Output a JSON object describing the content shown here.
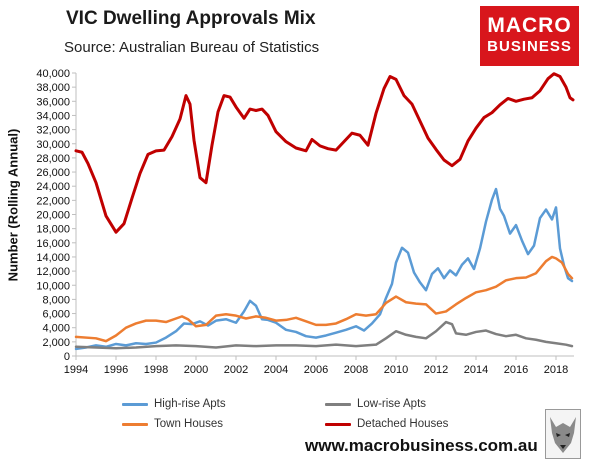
{
  "title": "VIC Dwelling Approvals Mix",
  "subtitle": "Source: Australian Bureau of Statistics",
  "logo": {
    "line1": "MACRO",
    "line2": "BUSINESS"
  },
  "website": "www.macrobusiness.com.au",
  "colors": {
    "high_rise": "#5b9bd5",
    "low_rise": "#7f7f7f",
    "town_houses": "#ed7d31",
    "detached": "#c00000",
    "logo_bg": "#d8161c"
  },
  "chart_data": {
    "type": "line",
    "title": "VIC Dwelling Approvals Mix",
    "ylabel": "Number (Rolling Annual)",
    "xlabel": "",
    "xlim": [
      1994,
      2018.9
    ],
    "ylim": [
      0,
      40000
    ],
    "x_ticks": [
      "1994",
      "1996",
      "1998",
      "2000",
      "2002",
      "2004",
      "2006",
      "2008",
      "2010",
      "2012",
      "2014",
      "2016",
      "2018"
    ],
    "y_ticks": [
      "0",
      "2,000",
      "4,000",
      "6,000",
      "8,000",
      "10,000",
      "12,000",
      "14,000",
      "16,000",
      "18,000",
      "20,000",
      "22,000",
      "24,000",
      "26,000",
      "28,000",
      "30,000",
      "32,000",
      "34,000",
      "36,000",
      "38,000",
      "40,000"
    ],
    "grid": false,
    "legend_position": "bottom",
    "series": [
      {
        "name": "High-rise Apts",
        "color": "#5b9bd5",
        "points": [
          [
            1994.0,
            1000
          ],
          [
            1994.5,
            1200
          ],
          [
            1995.0,
            1500
          ],
          [
            1995.5,
            1300
          ],
          [
            1996.0,
            1700
          ],
          [
            1996.5,
            1500
          ],
          [
            1997.0,
            1800
          ],
          [
            1997.5,
            1700
          ],
          [
            1998.0,
            1900
          ],
          [
            1998.5,
            2600
          ],
          [
            1999.0,
            3500
          ],
          [
            1999.4,
            4600
          ],
          [
            1999.8,
            4500
          ],
          [
            2000.2,
            4900
          ],
          [
            2000.6,
            4300
          ],
          [
            2001.0,
            5000
          ],
          [
            2001.5,
            5200
          ],
          [
            2002.0,
            4700
          ],
          [
            2002.4,
            6300
          ],
          [
            2002.7,
            7800
          ],
          [
            2003.0,
            7100
          ],
          [
            2003.3,
            5200
          ],
          [
            2003.6,
            5100
          ],
          [
            2004.0,
            4700
          ],
          [
            2004.5,
            3700
          ],
          [
            2005.0,
            3400
          ],
          [
            2005.5,
            2800
          ],
          [
            2006.0,
            2600
          ],
          [
            2006.5,
            2900
          ],
          [
            2007.0,
            3300
          ],
          [
            2007.5,
            3700
          ],
          [
            2008.0,
            4200
          ],
          [
            2008.4,
            3600
          ],
          [
            2008.8,
            4600
          ],
          [
            2009.2,
            5900
          ],
          [
            2009.5,
            8200
          ],
          [
            2009.8,
            10200
          ],
          [
            2010.0,
            13200
          ],
          [
            2010.3,
            15300
          ],
          [
            2010.6,
            14600
          ],
          [
            2010.9,
            11800
          ],
          [
            2011.2,
            10400
          ],
          [
            2011.5,
            9300
          ],
          [
            2011.8,
            11600
          ],
          [
            2012.1,
            12400
          ],
          [
            2012.4,
            11000
          ],
          [
            2012.7,
            12100
          ],
          [
            2013.0,
            11400
          ],
          [
            2013.3,
            12900
          ],
          [
            2013.6,
            13800
          ],
          [
            2013.9,
            12300
          ],
          [
            2014.2,
            15200
          ],
          [
            2014.5,
            19000
          ],
          [
            2014.8,
            22100
          ],
          [
            2015.0,
            23600
          ],
          [
            2015.2,
            20800
          ],
          [
            2015.4,
            19800
          ],
          [
            2015.7,
            17300
          ],
          [
            2016.0,
            18500
          ],
          [
            2016.3,
            16300
          ],
          [
            2016.6,
            14400
          ],
          [
            2016.9,
            15600
          ],
          [
            2017.2,
            19500
          ],
          [
            2017.5,
            20700
          ],
          [
            2017.8,
            19300
          ],
          [
            2018.0,
            21000
          ],
          [
            2018.2,
            15200
          ],
          [
            2018.4,
            12800
          ],
          [
            2018.6,
            11000
          ],
          [
            2018.8,
            10600
          ]
        ]
      },
      {
        "name": "Low-rise Apts",
        "color": "#7f7f7f",
        "points": [
          [
            1994.0,
            1300
          ],
          [
            1995.0,
            1200
          ],
          [
            1996.0,
            1100
          ],
          [
            1997.0,
            1200
          ],
          [
            1998.0,
            1400
          ],
          [
            1999.0,
            1500
          ],
          [
            2000.0,
            1400
          ],
          [
            2001.0,
            1200
          ],
          [
            2002.0,
            1500
          ],
          [
            2003.0,
            1400
          ],
          [
            2004.0,
            1500
          ],
          [
            2005.0,
            1500
          ],
          [
            2006.0,
            1400
          ],
          [
            2007.0,
            1600
          ],
          [
            2008.0,
            1400
          ],
          [
            2009.0,
            1600
          ],
          [
            2009.5,
            2500
          ],
          [
            2010.0,
            3500
          ],
          [
            2010.5,
            3000
          ],
          [
            2011.0,
            2700
          ],
          [
            2011.5,
            2500
          ],
          [
            2012.0,
            3500
          ],
          [
            2012.5,
            4800
          ],
          [
            2012.8,
            4500
          ],
          [
            2013.0,
            3200
          ],
          [
            2013.5,
            3000
          ],
          [
            2014.0,
            3400
          ],
          [
            2014.5,
            3600
          ],
          [
            2015.0,
            3100
          ],
          [
            2015.5,
            2800
          ],
          [
            2016.0,
            3000
          ],
          [
            2016.5,
            2500
          ],
          [
            2017.0,
            2300
          ],
          [
            2017.5,
            2000
          ],
          [
            2018.0,
            1800
          ],
          [
            2018.5,
            1600
          ],
          [
            2018.8,
            1400
          ]
        ]
      },
      {
        "name": "Town Houses",
        "color": "#ed7d31",
        "points": [
          [
            1994.0,
            2700
          ],
          [
            1995.0,
            2500
          ],
          [
            1995.5,
            2100
          ],
          [
            1996.0,
            2900
          ],
          [
            1996.5,
            4000
          ],
          [
            1997.0,
            4600
          ],
          [
            1997.5,
            5000
          ],
          [
            1998.0,
            5000
          ],
          [
            1998.5,
            4800
          ],
          [
            1999.0,
            5300
          ],
          [
            1999.3,
            5600
          ],
          [
            1999.6,
            5200
          ],
          [
            2000.0,
            4200
          ],
          [
            2000.5,
            4400
          ],
          [
            2001.0,
            5700
          ],
          [
            2001.5,
            5900
          ],
          [
            2002.0,
            5700
          ],
          [
            2002.5,
            5300
          ],
          [
            2003.0,
            5600
          ],
          [
            2003.5,
            5400
          ],
          [
            2004.0,
            5000
          ],
          [
            2004.5,
            5100
          ],
          [
            2005.0,
            5400
          ],
          [
            2005.5,
            4900
          ],
          [
            2006.0,
            4400
          ],
          [
            2006.5,
            4400
          ],
          [
            2007.0,
            4600
          ],
          [
            2007.5,
            5200
          ],
          [
            2008.0,
            5900
          ],
          [
            2008.5,
            5700
          ],
          [
            2009.0,
            5900
          ],
          [
            2009.5,
            7500
          ],
          [
            2010.0,
            8400
          ],
          [
            2010.5,
            7600
          ],
          [
            2011.0,
            7400
          ],
          [
            2011.5,
            7300
          ],
          [
            2012.0,
            6000
          ],
          [
            2012.5,
            6300
          ],
          [
            2013.0,
            7300
          ],
          [
            2013.5,
            8200
          ],
          [
            2014.0,
            9000
          ],
          [
            2014.5,
            9300
          ],
          [
            2015.0,
            9800
          ],
          [
            2015.5,
            10700
          ],
          [
            2016.0,
            11000
          ],
          [
            2016.5,
            11100
          ],
          [
            2017.0,
            11700
          ],
          [
            2017.5,
            13400
          ],
          [
            2017.8,
            14000
          ],
          [
            2018.0,
            13800
          ],
          [
            2018.3,
            13200
          ],
          [
            2018.6,
            11600
          ],
          [
            2018.8,
            11000
          ]
        ]
      },
      {
        "name": "Detached Houses",
        "color": "#c00000",
        "points": [
          [
            1994.0,
            29000
          ],
          [
            1994.3,
            28800
          ],
          [
            1994.6,
            27200
          ],
          [
            1995.0,
            24500
          ],
          [
            1995.5,
            19800
          ],
          [
            1996.0,
            17500
          ],
          [
            1996.4,
            18700
          ],
          [
            1996.8,
            22300
          ],
          [
            1997.2,
            25800
          ],
          [
            1997.6,
            28500
          ],
          [
            1998.0,
            29000
          ],
          [
            1998.4,
            29100
          ],
          [
            1998.8,
            31000
          ],
          [
            1999.2,
            33500
          ],
          [
            1999.5,
            36800
          ],
          [
            1999.7,
            35600
          ],
          [
            1999.9,
            30500
          ],
          [
            2000.2,
            25200
          ],
          [
            2000.5,
            24500
          ],
          [
            2000.8,
            29800
          ],
          [
            2001.1,
            34500
          ],
          [
            2001.4,
            36800
          ],
          [
            2001.7,
            36600
          ],
          [
            2002.0,
            35200
          ],
          [
            2002.4,
            33600
          ],
          [
            2002.7,
            34900
          ],
          [
            2003.0,
            34700
          ],
          [
            2003.3,
            34900
          ],
          [
            2003.6,
            34000
          ],
          [
            2004.0,
            31700
          ],
          [
            2004.5,
            30300
          ],
          [
            2005.0,
            29400
          ],
          [
            2005.5,
            29000
          ],
          [
            2005.8,
            30600
          ],
          [
            2006.2,
            29700
          ],
          [
            2006.6,
            29300
          ],
          [
            2007.0,
            29100
          ],
          [
            2007.5,
            30600
          ],
          [
            2007.8,
            31500
          ],
          [
            2008.2,
            31200
          ],
          [
            2008.6,
            29800
          ],
          [
            2009.0,
            34300
          ],
          [
            2009.4,
            37800
          ],
          [
            2009.7,
            39500
          ],
          [
            2010.0,
            39100
          ],
          [
            2010.4,
            36800
          ],
          [
            2010.8,
            35600
          ],
          [
            2011.2,
            33200
          ],
          [
            2011.6,
            30800
          ],
          [
            2012.0,
            29200
          ],
          [
            2012.4,
            27700
          ],
          [
            2012.8,
            26900
          ],
          [
            2013.2,
            27800
          ],
          [
            2013.6,
            30400
          ],
          [
            2014.0,
            32200
          ],
          [
            2014.4,
            33700
          ],
          [
            2014.8,
            34400
          ],
          [
            2015.2,
            35500
          ],
          [
            2015.6,
            36400
          ],
          [
            2016.0,
            36000
          ],
          [
            2016.4,
            36300
          ],
          [
            2016.8,
            36500
          ],
          [
            2017.2,
            37500
          ],
          [
            2017.6,
            39200
          ],
          [
            2017.9,
            39900
          ],
          [
            2018.2,
            39500
          ],
          [
            2018.5,
            38000
          ],
          [
            2018.7,
            36500
          ],
          [
            2018.85,
            36200
          ]
        ]
      }
    ]
  }
}
